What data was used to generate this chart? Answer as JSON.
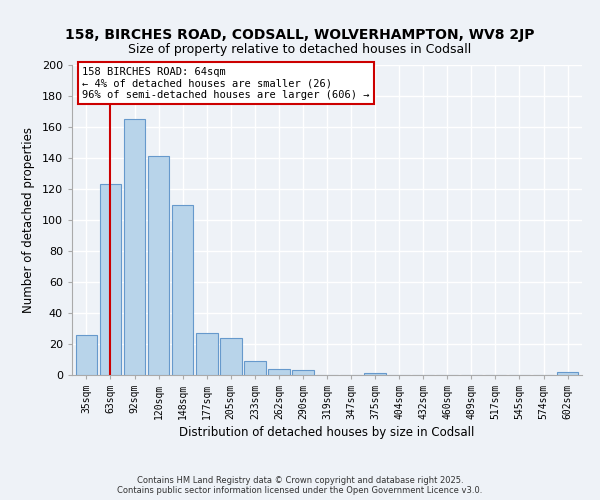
{
  "title": "158, BIRCHES ROAD, CODSALL, WOLVERHAMPTON, WV8 2JP",
  "subtitle": "Size of property relative to detached houses in Codsall",
  "xlabel": "Distribution of detached houses by size in Codsall",
  "ylabel": "Number of detached properties",
  "categories": [
    "35sqm",
    "63sqm",
    "92sqm",
    "120sqm",
    "148sqm",
    "177sqm",
    "205sqm",
    "233sqm",
    "262sqm",
    "290sqm",
    "319sqm",
    "347sqm",
    "375sqm",
    "404sqm",
    "432sqm",
    "460sqm",
    "489sqm",
    "517sqm",
    "545sqm",
    "574sqm",
    "602sqm"
  ],
  "values": [
    26,
    123,
    165,
    141,
    110,
    27,
    24,
    9,
    4,
    3,
    0,
    0,
    1,
    0,
    0,
    0,
    0,
    0,
    0,
    0,
    2
  ],
  "bar_color": "#b8d4ea",
  "bar_edge_color": "#6699cc",
  "vline_x": 1,
  "vline_color": "#cc0000",
  "ylim": [
    0,
    200
  ],
  "yticks": [
    0,
    20,
    40,
    60,
    80,
    100,
    120,
    140,
    160,
    180,
    200
  ],
  "annotation_box_text1": "158 BIRCHES ROAD: 64sqm",
  "annotation_box_text2": "← 4% of detached houses are smaller (26)",
  "annotation_box_text3": "96% of semi-detached houses are larger (606) →",
  "footer_line1": "Contains HM Land Registry data © Crown copyright and database right 2025.",
  "footer_line2": "Contains public sector information licensed under the Open Government Licence v3.0.",
  "bg_color": "#eef2f7",
  "grid_color": "#ffffff"
}
